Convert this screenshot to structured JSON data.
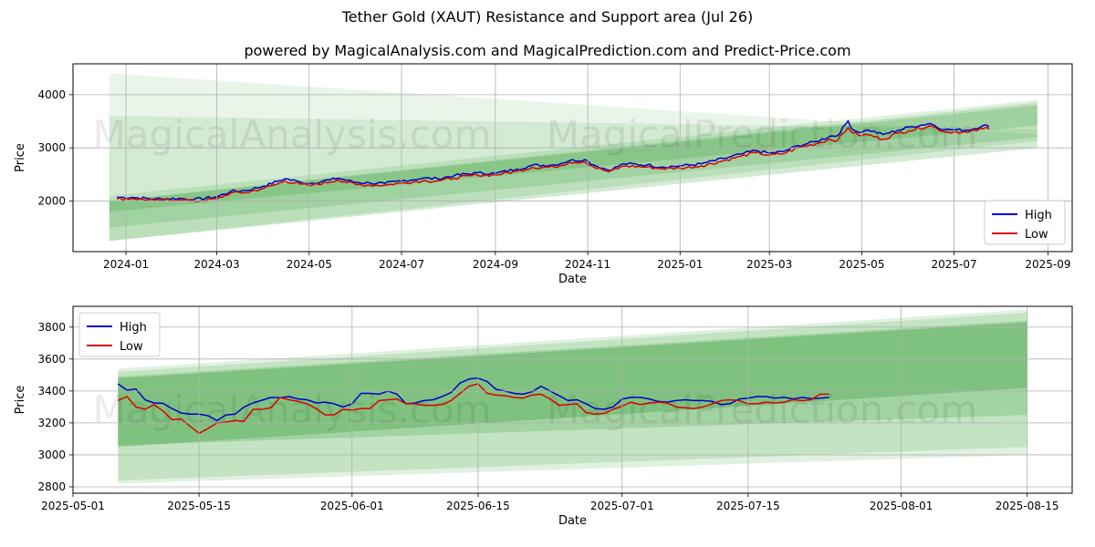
{
  "title": "Tether Gold (XAUT) Resistance and Support area (Jul 26)",
  "subtitle": "powered by MagicalAnalysis.com and MagicalPrediction.com and Predict-Price.com",
  "watermarks": [
    "MagicalAnalysis.com",
    "MagicalPrediction.com"
  ],
  "colors": {
    "high": "#0000cc",
    "low": "#dd0000",
    "band": "#2e9a2e",
    "grid": "#b0b0b0"
  },
  "chart_data": [
    {
      "type": "line",
      "name": "overview",
      "xlabel": "Date",
      "ylabel": "Price",
      "x_start": "2023-12-21",
      "x_end": "2025-08-25",
      "xlim": [
        "2023-11-27",
        "2025-09-17"
      ],
      "ylim": [
        1050,
        4580
      ],
      "yticks": [
        2000,
        3000,
        4000
      ],
      "xticks": [
        "2024-01",
        "2024-03",
        "2024-05",
        "2024-07",
        "2024-09",
        "2024-11",
        "2025-01",
        "2025-03",
        "2025-05",
        "2025-07",
        "2025-09"
      ],
      "xtick_dates": [
        "2024-01-01",
        "2024-03-01",
        "2024-05-01",
        "2024-07-01",
        "2024-09-01",
        "2024-11-01",
        "2025-01-01",
        "2025-03-01",
        "2025-05-01",
        "2025-07-01",
        "2025-09-01"
      ],
      "grid": true,
      "legend": "lower-right",
      "series": [
        {
          "name": "High",
          "color": "#0000cc",
          "x": [
            "2023-12-26",
            "2024-01-05",
            "2024-01-20",
            "2024-02-05",
            "2024-02-15",
            "2024-03-01",
            "2024-03-10",
            "2024-03-20",
            "2024-04-01",
            "2024-04-10",
            "2024-04-15",
            "2024-04-25",
            "2024-05-01",
            "2024-05-15",
            "2024-05-20",
            "2024-06-01",
            "2024-06-10",
            "2024-06-20",
            "2024-07-01",
            "2024-07-15",
            "2024-07-25",
            "2024-08-05",
            "2024-08-20",
            "2024-09-01",
            "2024-09-15",
            "2024-09-25",
            "2024-10-10",
            "2024-10-20",
            "2024-10-30",
            "2024-11-05",
            "2024-11-15",
            "2024-11-25",
            "2024-12-10",
            "2024-12-20",
            "2025-01-01",
            "2025-01-15",
            "2025-01-30",
            "2025-02-10",
            "2025-02-20",
            "2025-03-01",
            "2025-03-10",
            "2025-03-20",
            "2025-04-01",
            "2025-04-10",
            "2025-04-15",
            "2025-04-22",
            "2025-04-25",
            "2025-05-01",
            "2025-05-05",
            "2025-05-15",
            "2025-05-25",
            "2025-06-01",
            "2025-06-15",
            "2025-06-25",
            "2025-07-01",
            "2025-07-10",
            "2025-07-20",
            "2025-07-23",
            "2025-07-24"
          ],
          "y": [
            2070,
            2070,
            2040,
            2050,
            2030,
            2080,
            2180,
            2200,
            2280,
            2370,
            2420,
            2360,
            2330,
            2400,
            2430,
            2350,
            2340,
            2330,
            2380,
            2430,
            2420,
            2480,
            2530,
            2520,
            2600,
            2670,
            2680,
            2760,
            2780,
            2680,
            2580,
            2700,
            2680,
            2640,
            2660,
            2700,
            2800,
            2880,
            2950,
            2900,
            2930,
            3040,
            3120,
            3220,
            3230,
            3510,
            3340,
            3290,
            3340,
            3250,
            3330,
            3390,
            3460,
            3340,
            3340,
            3330,
            3420,
            3420,
            3390
          ]
        },
        {
          "name": "Low",
          "color": "#dd0000",
          "x": [
            "2023-12-26",
            "2024-01-05",
            "2024-01-20",
            "2024-02-05",
            "2024-02-15",
            "2024-03-01",
            "2024-03-10",
            "2024-03-20",
            "2024-04-01",
            "2024-04-10",
            "2024-04-15",
            "2024-04-25",
            "2024-05-01",
            "2024-05-15",
            "2024-05-20",
            "2024-06-01",
            "2024-06-10",
            "2024-06-20",
            "2024-07-01",
            "2024-07-15",
            "2024-07-25",
            "2024-08-05",
            "2024-08-20",
            "2024-09-01",
            "2024-09-15",
            "2024-09-25",
            "2024-10-10",
            "2024-10-20",
            "2024-10-30",
            "2024-11-05",
            "2024-11-15",
            "2024-11-25",
            "2024-12-10",
            "2024-12-20",
            "2025-01-01",
            "2025-01-15",
            "2025-01-30",
            "2025-02-10",
            "2025-02-20",
            "2025-03-01",
            "2025-03-10",
            "2025-03-20",
            "2025-04-01",
            "2025-04-10",
            "2025-04-15",
            "2025-04-22",
            "2025-04-25",
            "2025-05-01",
            "2025-05-05",
            "2025-05-15",
            "2025-05-25",
            "2025-06-01",
            "2025-06-15",
            "2025-06-25",
            "2025-07-01",
            "2025-07-10",
            "2025-07-20",
            "2025-07-23",
            "2025-07-24"
          ],
          "y": [
            2040,
            2050,
            2010,
            2030,
            2000,
            2040,
            2150,
            2160,
            2240,
            2320,
            2380,
            2320,
            2290,
            2360,
            2400,
            2310,
            2300,
            2300,
            2340,
            2380,
            2380,
            2430,
            2490,
            2490,
            2560,
            2630,
            2640,
            2730,
            2740,
            2640,
            2550,
            2660,
            2640,
            2610,
            2620,
            2660,
            2760,
            2840,
            2910,
            2860,
            2890,
            3000,
            3080,
            3160,
            3140,
            3380,
            3280,
            3230,
            3250,
            3160,
            3280,
            3320,
            3420,
            3300,
            3300,
            3290,
            3360,
            3380,
            3350
          ]
        }
      ],
      "bands": [
        {
          "x": [
            "2023-12-21",
            "2025-08-25"
          ],
          "upper": [
            4400,
            3250
          ],
          "lower": [
            1250,
            3000
          ],
          "opacity": 0.1
        },
        {
          "x": [
            "2023-12-21",
            "2025-08-25"
          ],
          "upper": [
            3600,
            3350
          ],
          "lower": [
            1250,
            3000
          ],
          "opacity": 0.12
        },
        {
          "x": [
            "2023-12-21",
            "2025-08-25"
          ],
          "upper": [
            2100,
            3900
          ],
          "lower": [
            1250,
            3130
          ],
          "opacity": 0.14
        },
        {
          "x": [
            "2023-12-21",
            "2025-08-25"
          ],
          "upper": [
            2000,
            3850
          ],
          "lower": [
            1500,
            3200
          ],
          "opacity": 0.18
        },
        {
          "x": [
            "2023-12-21",
            "2025-08-25"
          ],
          "upper": [
            2000,
            3800
          ],
          "lower": [
            1800,
            3420
          ],
          "opacity": 0.22
        }
      ]
    },
    {
      "type": "line",
      "name": "zoom",
      "xlabel": "Date",
      "ylabel": "Price",
      "x_start": "2025-05-06",
      "x_end": "2025-08-15",
      "xlim": [
        "2025-05-01",
        "2025-08-20"
      ],
      "ylim": [
        2760,
        3930
      ],
      "yticks": [
        2800,
        3000,
        3200,
        3400,
        3600,
        3800
      ],
      "xticks": [
        "2025-05-01",
        "2025-05-15",
        "2025-06-01",
        "2025-06-15",
        "2025-07-01",
        "2025-07-15",
        "2025-08-01",
        "2025-08-15"
      ],
      "xtick_dates": [
        "2025-05-01",
        "2025-05-15",
        "2025-06-01",
        "2025-06-15",
        "2025-07-01",
        "2025-07-15",
        "2025-08-01",
        "2025-08-15"
      ],
      "grid": true,
      "legend": "upper-left",
      "series": [
        {
          "name": "High",
          "color": "#0000cc",
          "x": [
            "2025-05-06",
            "2025-05-07",
            "2025-05-08",
            "2025-05-09",
            "2025-05-10",
            "2025-05-11",
            "2025-05-12",
            "2025-05-13",
            "2025-05-14",
            "2025-05-15",
            "2025-05-16",
            "2025-05-17",
            "2025-05-18",
            "2025-05-19",
            "2025-05-20",
            "2025-05-21",
            "2025-05-22",
            "2025-05-23",
            "2025-05-24",
            "2025-05-25",
            "2025-05-26",
            "2025-05-27",
            "2025-05-28",
            "2025-05-29",
            "2025-05-30",
            "2025-05-31",
            "2025-06-01",
            "2025-06-02",
            "2025-06-03",
            "2025-06-04",
            "2025-06-05",
            "2025-06-06",
            "2025-06-07",
            "2025-06-08",
            "2025-06-09",
            "2025-06-10",
            "2025-06-11",
            "2025-06-12",
            "2025-06-13",
            "2025-06-14",
            "2025-06-15",
            "2025-06-16",
            "2025-06-17",
            "2025-06-18",
            "2025-06-19",
            "2025-06-20",
            "2025-06-21",
            "2025-06-22",
            "2025-06-23",
            "2025-06-24",
            "2025-06-25",
            "2025-06-26",
            "2025-06-27",
            "2025-06-28",
            "2025-06-29",
            "2025-06-30",
            "2025-07-01",
            "2025-07-02",
            "2025-07-03",
            "2025-07-04",
            "2025-07-05",
            "2025-07-06",
            "2025-07-07",
            "2025-07-08",
            "2025-07-09",
            "2025-07-10",
            "2025-07-11",
            "2025-07-12",
            "2025-07-13",
            "2025-07-14",
            "2025-07-15",
            "2025-07-16",
            "2025-07-17",
            "2025-07-18",
            "2025-07-19",
            "2025-07-20",
            "2025-07-21",
            "2025-07-22",
            "2025-07-23",
            "2025-07-24"
          ],
          "y": [
            3445,
            3405,
            3412,
            3345,
            3325,
            3322,
            3290,
            3262,
            3255,
            3255,
            3245,
            3215,
            3250,
            3255,
            3300,
            3325,
            3342,
            3360,
            3358,
            3365,
            3350,
            3345,
            3325,
            3330,
            3320,
            3300,
            3320,
            3385,
            3385,
            3380,
            3400,
            3380,
            3320,
            3325,
            3340,
            3345,
            3365,
            3390,
            3450,
            3475,
            3480,
            3460,
            3410,
            3400,
            3385,
            3380,
            3395,
            3430,
            3400,
            3370,
            3340,
            3345,
            3320,
            3290,
            3285,
            3300,
            3350,
            3360,
            3360,
            3350,
            3335,
            3330,
            3340,
            3345,
            3340,
            3340,
            3335,
            3315,
            3320,
            3350,
            3355,
            3365,
            3365,
            3355,
            3360,
            3350,
            3360,
            3352,
            3355,
            3360
          ]
        }
      ],
      "bands": []
    }
  ]
}
